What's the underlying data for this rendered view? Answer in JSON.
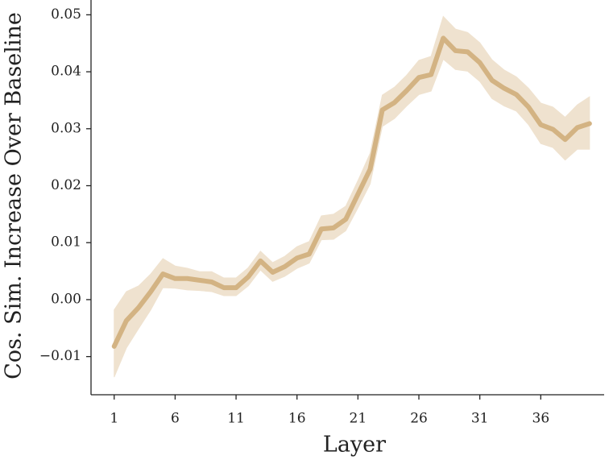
{
  "chart_data": {
    "type": "line",
    "xlabel": "Layer",
    "ylabel": "Cos. Sim. Increase Over Baseline",
    "x": [
      1,
      2,
      3,
      4,
      5,
      6,
      7,
      8,
      9,
      10,
      11,
      12,
      13,
      14,
      15,
      16,
      17,
      18,
      19,
      20,
      21,
      22,
      23,
      24,
      25,
      26,
      27,
      28,
      29,
      30,
      31,
      32,
      33,
      34,
      35,
      36,
      37,
      38,
      39,
      40
    ],
    "values": [
      -0.0082,
      -0.0037,
      -0.0014,
      0.0014,
      0.0045,
      0.0037,
      0.0037,
      0.0034,
      0.0031,
      0.0021,
      0.0021,
      0.004,
      0.0068,
      0.0048,
      0.0058,
      0.0073,
      0.008,
      0.0124,
      0.0126,
      0.0141,
      0.0185,
      0.0229,
      0.0333,
      0.0346,
      0.0367,
      0.039,
      0.0395,
      0.0459,
      0.0437,
      0.0435,
      0.0416,
      0.0385,
      0.0371,
      0.036,
      0.0338,
      0.0307,
      0.0299,
      0.0281,
      0.0302,
      0.0309
    ],
    "lower": [
      -0.0136,
      -0.0085,
      -0.0051,
      -0.0018,
      0.0021,
      0.002,
      0.0017,
      0.0016,
      0.0014,
      0.0007,
      0.0007,
      0.0024,
      0.0052,
      0.0032,
      0.0041,
      0.0055,
      0.0064,
      0.0105,
      0.0106,
      0.0121,
      0.0161,
      0.0203,
      0.0304,
      0.0318,
      0.034,
      0.036,
      0.0366,
      0.0422,
      0.0404,
      0.0401,
      0.0383,
      0.0353,
      0.034,
      0.0331,
      0.0307,
      0.0274,
      0.0267,
      0.0245,
      0.0264,
      0.0264
    ],
    "upper": [
      -0.0018,
      0.0014,
      0.0024,
      0.0045,
      0.0072,
      0.0059,
      0.0055,
      0.0049,
      0.0049,
      0.0038,
      0.0038,
      0.0056,
      0.0085,
      0.0065,
      0.0076,
      0.0093,
      0.0102,
      0.0147,
      0.015,
      0.0164,
      0.0209,
      0.0257,
      0.0359,
      0.0373,
      0.0394,
      0.042,
      0.0427,
      0.0497,
      0.0475,
      0.0469,
      0.0451,
      0.0421,
      0.0403,
      0.0391,
      0.0371,
      0.0345,
      0.0338,
      0.032,
      0.0342,
      0.0356
    ],
    "color": "#d3b383",
    "band_color": "#efe2cf",
    "xlim": [
      -0.9,
      41.2
    ],
    "xticks": [
      1,
      6,
      11,
      16,
      21,
      26,
      31,
      36
    ],
    "ylim": [
      -0.0167,
      0.0526
    ],
    "yticks": [
      {
        "value": -0.01,
        "label": "−0.01"
      },
      {
        "value": 0,
        "label": "0.00"
      },
      0.01,
      0.02,
      0.03,
      0.04,
      0.05
    ]
  }
}
